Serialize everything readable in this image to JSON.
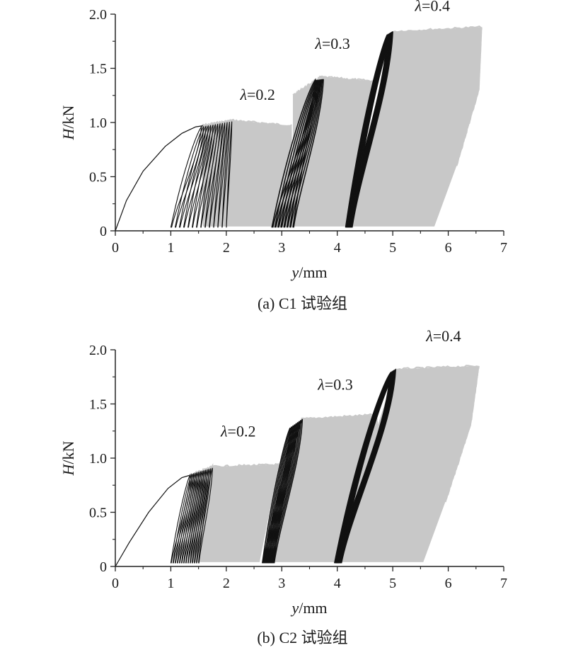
{
  "chart_data": [
    {
      "type": "line",
      "caption": "(a) C1 试验组",
      "xlabel_italic": "y",
      "xlabel_unit": "/mm",
      "ylabel_italic": "H",
      "ylabel_unit": "/kN",
      "xlim": [
        0,
        7
      ],
      "ylim": [
        0,
        2.0
      ],
      "xticks": [
        "0",
        "1",
        "2",
        "3",
        "4",
        "5",
        "6",
        "7"
      ],
      "yticks": [
        "0",
        "0.5",
        "1.0",
        "1.5",
        "2.0"
      ],
      "fill_color": "#c8c8c8",
      "line_color": "#111111",
      "groups": [
        {
          "label": "λ=0.2",
          "label_pos": [
            2.25,
            1.21
          ],
          "initial_curve": [
            [
              0,
              0
            ],
            [
              0.2,
              0.28
            ],
            [
              0.5,
              0.55
            ],
            [
              0.9,
              0.78
            ],
            [
              1.2,
              0.9
            ],
            [
              1.45,
              0.96
            ],
            [
              1.58,
              0.97
            ]
          ],
          "band": [
            [
              1.58,
              0.04
            ],
            [
              1.55,
              0.97
            ],
            [
              2.1,
              1.02
            ],
            [
              3.18,
              0.97
            ],
            [
              3.2,
              0.04
            ]
          ],
          "loops": {
            "start_x": [
              1.0,
              2.0
            ],
            "top_x": [
              1.55,
              2.1
            ],
            "top_y": [
              0.96,
              1.01
            ],
            "count": 14
          }
        },
        {
          "label": "λ=0.3",
          "label_pos": [
            3.6,
            1.68
          ],
          "band": [
            [
              3.2,
              0.04
            ],
            [
              3.2,
              1.25
            ],
            [
              3.7,
              1.42
            ],
            [
              4.7,
              1.38
            ],
            [
              4.2,
              0.04
            ]
          ],
          "loops": {
            "start_x": [
              2.82,
              3.2
            ],
            "top_x": [
              3.6,
              3.75
            ],
            "top_y": [
              1.39,
              1.4
            ],
            "count": 8
          }
        },
        {
          "label": "λ=0.4",
          "label_pos": [
            5.4,
            2.03
          ],
          "band": [
            [
              4.2,
              0.04
            ],
            [
              5.0,
              1.84
            ],
            [
              6.6,
              1.88
            ],
            [
              6.55,
              1.3
            ],
            [
              6.15,
              0.6
            ],
            [
              5.75,
              0.04
            ]
          ],
          "loops": {
            "start_x": [
              4.15,
              4.25
            ],
            "top_x": [
              4.9,
              5.0
            ],
            "top_y": [
              1.81,
              1.84
            ],
            "count": 8
          }
        }
      ]
    },
    {
      "type": "line",
      "caption": "(b) C2 试验组",
      "xlabel_italic": "y",
      "xlabel_unit": "/mm",
      "ylabel_italic": "H",
      "ylabel_unit": "/kN",
      "xlim": [
        0,
        7
      ],
      "ylim": [
        0,
        2.0
      ],
      "xticks": [
        "0",
        "1",
        "2",
        "3",
        "4",
        "5",
        "6",
        "7"
      ],
      "yticks": [
        "0",
        "0.5",
        "1.0",
        "1.5",
        "2.0"
      ],
      "fill_color": "#c8c8c8",
      "line_color": "#111111",
      "groups": [
        {
          "label": "λ=0.2",
          "label_pos": [
            1.9,
            1.2
          ],
          "initial_curve": [
            [
              0,
              0
            ],
            [
              0.25,
              0.22
            ],
            [
              0.6,
              0.5
            ],
            [
              0.95,
              0.72
            ],
            [
              1.2,
              0.82
            ],
            [
              1.33,
              0.84
            ]
          ],
          "band": [
            [
              1.35,
              0.04
            ],
            [
              1.33,
              0.84
            ],
            [
              1.75,
              0.92
            ],
            [
              2.95,
              0.94
            ],
            [
              2.6,
              0.04
            ]
          ],
          "loops": {
            "start_x": [
              1.0,
              1.5
            ],
            "top_x": [
              1.35,
              1.75
            ],
            "top_y": [
              0.85,
              0.91
            ],
            "count": 14
          }
        },
        {
          "label": "λ=0.3",
          "label_pos": [
            3.65,
            1.63
          ],
          "band": [
            [
              2.7,
              0.04
            ],
            [
              3.35,
              1.36
            ],
            [
              4.7,
              1.4
            ],
            [
              4.75,
              1.2
            ],
            [
              3.95,
              0.04
            ]
          ],
          "loops": {
            "start_x": [
              2.65,
              2.85
            ],
            "top_x": [
              3.15,
              3.37
            ],
            "top_y": [
              1.28,
              1.36
            ],
            "count": 9
          }
        },
        {
          "label": "λ=0.4",
          "label_pos": [
            5.6,
            2.08
          ],
          "band": [
            [
              3.95,
              0.04
            ],
            [
              5.05,
              1.82
            ],
            [
              6.55,
              1.85
            ],
            [
              6.4,
              1.3
            ],
            [
              5.95,
              0.6
            ],
            [
              5.55,
              0.04
            ]
          ],
          "loops": {
            "start_x": [
              3.95,
              4.05
            ],
            "top_x": [
              4.95,
              5.05
            ],
            "top_y": [
              1.78,
              1.81
            ],
            "count": 8
          }
        }
      ]
    }
  ]
}
